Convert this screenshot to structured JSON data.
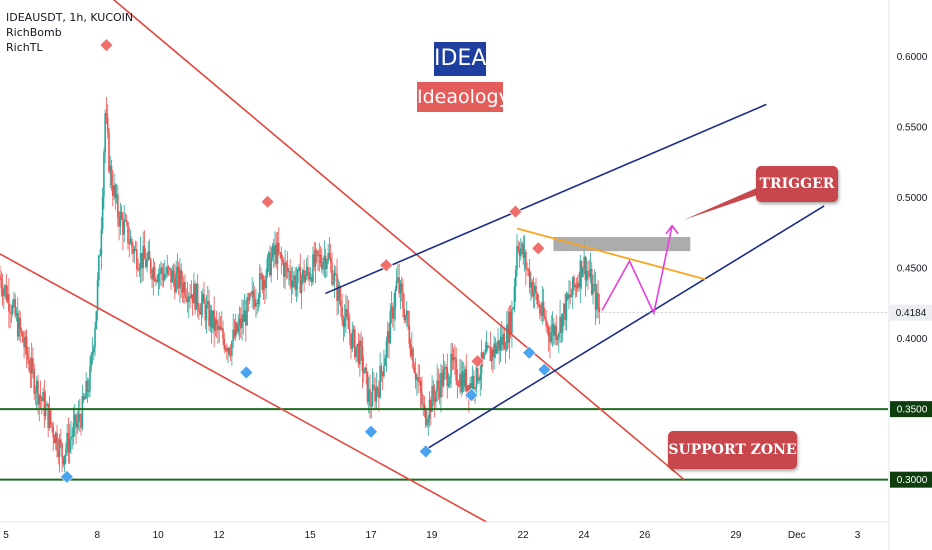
{
  "legend": {
    "symbol": "IDEAUSDT, 1h, KUCOIN",
    "indicator_1": "RichBomb",
    "indicator_2": "RichTL"
  },
  "labels": {
    "title": "IDEA",
    "subtitle": "Ideaology",
    "trigger": "TRIGGER",
    "support_zone": "SUPPORT ZONE"
  },
  "colors": {
    "up_candle": "#26a69a",
    "down_candle": "#ef5350",
    "resistance_line": "#e5463c",
    "channel_line": "#1b2c8c",
    "support_line": "#1f6b1f",
    "yellow_line": "#f5a623",
    "projection": "#e83de0",
    "title_bg": "#1e3fa0",
    "subtitle_bg": "#e35d5b",
    "callout_bg": "#c8474c",
    "diamond_top": "#ef6f6c",
    "diamond_bottom": "#4aa3f0"
  },
  "chart_data": {
    "type": "candlestick",
    "y_axis": {
      "ticks": [
        "0.6000",
        "0.5500",
        "0.5000",
        "0.4500",
        "0.4000"
      ],
      "tick_values": [
        0.6,
        0.55,
        0.5,
        0.45,
        0.4
      ],
      "range": [
        0.27,
        0.64
      ]
    },
    "x_axis": {
      "ticks": [
        "5",
        "8",
        "10",
        "12",
        "15",
        "17",
        "19",
        "22",
        "24",
        "26",
        "29",
        "Dec",
        "3"
      ],
      "tick_days": [
        5,
        8,
        10,
        12,
        15,
        17,
        19,
        22,
        24,
        26,
        29,
        31,
        33
      ],
      "range_days": [
        4.8,
        34
      ]
    },
    "current_price": "0.4184",
    "current_price_value": 0.4184,
    "support_levels": [
      {
        "label": "0.3500",
        "value": 0.35
      },
      {
        "label": "0.3000",
        "value": 0.3
      }
    ],
    "price_path": [
      [
        4.8,
        0.445
      ],
      [
        5.2,
        0.425
      ],
      [
        5.6,
        0.398
      ],
      [
        6.0,
        0.368
      ],
      [
        6.3,
        0.352
      ],
      [
        6.6,
        0.335
      ],
      [
        6.9,
        0.318
      ],
      [
        7.2,
        0.332
      ],
      [
        7.5,
        0.345
      ],
      [
        7.8,
        0.372
      ],
      [
        8.0,
        0.42
      ],
      [
        8.15,
        0.47
      ],
      [
        8.3,
        0.56
      ],
      [
        8.45,
        0.52
      ],
      [
        8.7,
        0.49
      ],
      [
        9.0,
        0.475
      ],
      [
        9.3,
        0.46
      ],
      [
        9.6,
        0.455
      ],
      [
        10.0,
        0.448
      ],
      [
        10.4,
        0.445
      ],
      [
        10.8,
        0.44
      ],
      [
        11.2,
        0.432
      ],
      [
        11.6,
        0.42
      ],
      [
        12.0,
        0.405
      ],
      [
        12.4,
        0.395
      ],
      [
        12.8,
        0.412
      ],
      [
        13.2,
        0.43
      ],
      [
        13.6,
        0.448
      ],
      [
        13.9,
        0.462
      ],
      [
        14.2,
        0.45
      ],
      [
        14.6,
        0.44
      ],
      [
        15.0,
        0.447
      ],
      [
        15.3,
        0.455
      ],
      [
        15.6,
        0.46
      ],
      [
        15.8,
        0.445
      ],
      [
        16.1,
        0.42
      ],
      [
        16.4,
        0.4
      ],
      [
        16.7,
        0.388
      ],
      [
        17.0,
        0.355
      ],
      [
        17.3,
        0.368
      ],
      [
        17.6,
        0.4
      ],
      [
        17.9,
        0.44
      ],
      [
        18.2,
        0.415
      ],
      [
        18.5,
        0.378
      ],
      [
        18.8,
        0.345
      ],
      [
        19.1,
        0.36
      ],
      [
        19.4,
        0.372
      ],
      [
        19.7,
        0.38
      ],
      [
        20.0,
        0.372
      ],
      [
        20.3,
        0.368
      ],
      [
        20.6,
        0.378
      ],
      [
        20.9,
        0.388
      ],
      [
        21.2,
        0.395
      ],
      [
        21.5,
        0.402
      ],
      [
        21.7,
        0.42
      ],
      [
        21.85,
        0.47
      ],
      [
        22.0,
        0.462
      ],
      [
        22.3,
        0.44
      ],
      [
        22.6,
        0.42
      ],
      [
        22.9,
        0.405
      ],
      [
        23.2,
        0.408
      ],
      [
        23.5,
        0.425
      ],
      [
        23.8,
        0.44
      ],
      [
        24.0,
        0.455
      ],
      [
        24.2,
        0.445
      ],
      [
        24.4,
        0.43
      ],
      [
        24.55,
        0.4184
      ]
    ],
    "highlights": [
      {
        "x": 8.3,
        "y": 0.608,
        "kind": "top"
      },
      {
        "x": 13.6,
        "y": 0.497,
        "kind": "top"
      },
      {
        "x": 17.5,
        "y": 0.452,
        "kind": "top"
      },
      {
        "x": 20.5,
        "y": 0.384,
        "kind": "top"
      },
      {
        "x": 21.75,
        "y": 0.49,
        "kind": "top"
      },
      {
        "x": 22.5,
        "y": 0.464,
        "kind": "top"
      },
      {
        "x": 7.0,
        "y": 0.302,
        "kind": "bottom"
      },
      {
        "x": 12.9,
        "y": 0.376,
        "kind": "bottom"
      },
      {
        "x": 17.0,
        "y": 0.334,
        "kind": "bottom"
      },
      {
        "x": 18.8,
        "y": 0.32,
        "kind": "bottom"
      },
      {
        "x": 20.3,
        "y": 0.36,
        "kind": "bottom"
      },
      {
        "x": 22.2,
        "y": 0.39,
        "kind": "bottom"
      },
      {
        "x": 22.7,
        "y": 0.378,
        "kind": "bottom"
      }
    ],
    "trendlines": [
      {
        "kind": "resistance",
        "from": [
          4.8,
          0.708
        ],
        "to": [
          27.3,
          0.3
        ]
      },
      {
        "kind": "resistance",
        "from": [
          4.8,
          0.46
        ],
        "to": [
          20.8,
          0.27
        ]
      },
      {
        "kind": "channel",
        "from": [
          15.5,
          0.432
        ],
        "to": [
          30.0,
          0.566
        ]
      },
      {
        "kind": "channel",
        "from": [
          18.7,
          0.32
        ],
        "to": [
          31.9,
          0.494
        ]
      },
      {
        "kind": "yellow",
        "from": [
          21.8,
          0.478
        ],
        "to": [
          28.0,
          0.442
        ]
      }
    ],
    "trigger_zone": {
      "x": [
        23.0,
        27.5
      ],
      "y": [
        0.462,
        0.472
      ]
    },
    "projection_path": [
      [
        24.6,
        0.42
      ],
      [
        25.5,
        0.455
      ],
      [
        26.3,
        0.418
      ],
      [
        26.9,
        0.48
      ]
    ]
  }
}
